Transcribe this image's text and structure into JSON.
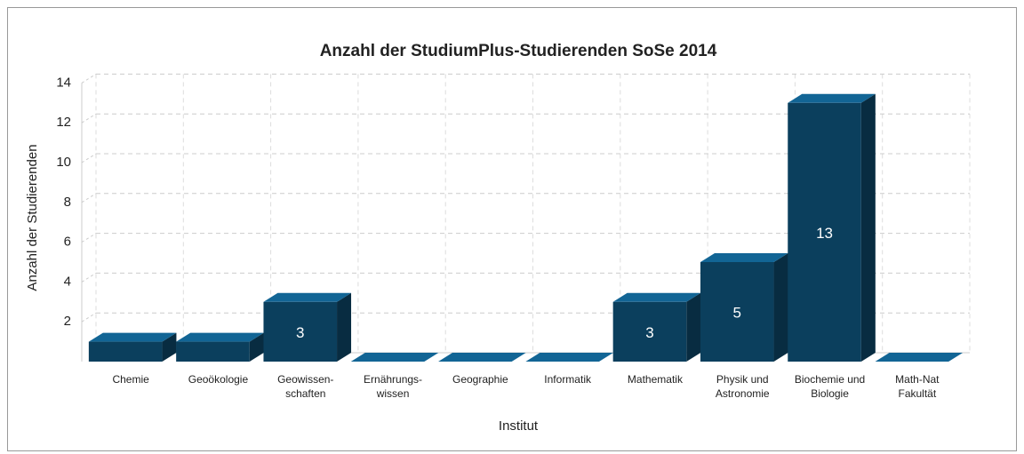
{
  "chart_data": {
    "type": "bar3d",
    "title": "Anzahl der StudiumPlus-Studierenden SoSe 2014",
    "x_label": "Institut",
    "y_label": "Anzahl der Studierenden",
    "categories": [
      [
        "Chemie"
      ],
      [
        "Geoökologie"
      ],
      [
        "Geowissen-",
        "schaften"
      ],
      [
        "Ernährungs-",
        "wissen"
      ],
      [
        "Geographie"
      ],
      [
        "Informatik"
      ],
      [
        "Mathematik"
      ],
      [
        "Physik und",
        "Astronomie"
      ],
      [
        "Biochemie und",
        "Biologie"
      ],
      [
        "Math-Nat",
        "Fakultät"
      ]
    ],
    "values": [
      1,
      1,
      3,
      0,
      0,
      0,
      3,
      5,
      13,
      0
    ],
    "value_labels": [
      null,
      null,
      "3",
      null,
      null,
      null,
      "3",
      "5",
      "13",
      null
    ],
    "color": "#0b3f5d",
    "ylim": [
      0,
      14
    ],
    "yticks": [
      2,
      4,
      6,
      8,
      10,
      12,
      14
    ],
    "grid": true
  }
}
